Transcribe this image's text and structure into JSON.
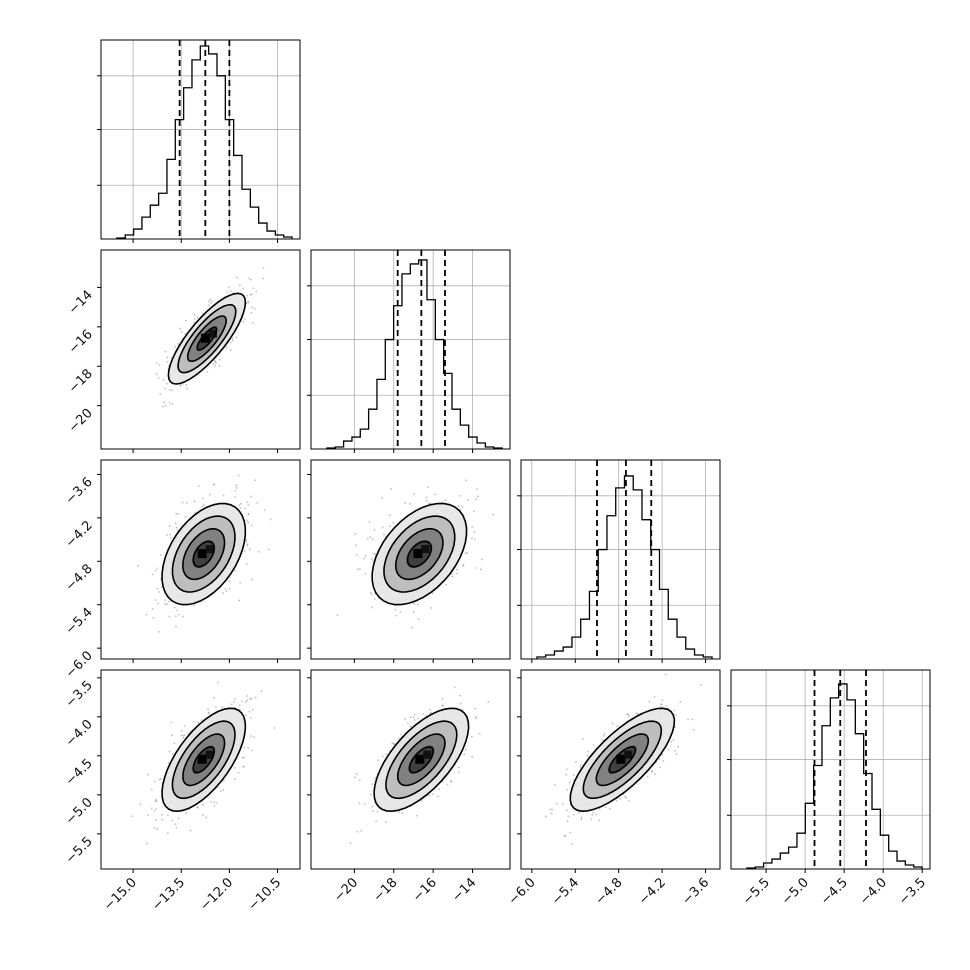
{
  "figure": {
    "type": "corner-plot",
    "n_params": 4
  },
  "style": {
    "grid_color": "#b0b0b0",
    "axis_color": "#000000",
    "hist_color": "#000000",
    "quantile_line_color": "#000000",
    "scatter_color": "#8a8a8a",
    "density_dark": "#000000",
    "background": "#ffffff"
  },
  "chart_data": [
    {
      "panel": "hist-p1",
      "type": "histogram",
      "grid": true,
      "x_ticks": [
        -15.0,
        -13.5,
        -12.0,
        -10.5
      ],
      "xlim": [
        -16.0,
        -9.8
      ],
      "bin_heights": [
        0.005,
        0.02,
        0.05,
        0.11,
        0.17,
        0.23,
        0.4,
        0.6,
        0.76,
        0.9,
        0.97,
        0.93,
        0.82,
        0.6,
        0.42,
        0.25,
        0.16,
        0.08,
        0.04,
        0.02,
        0.01
      ],
      "quantiles": [
        -13.55,
        -12.75,
        -12.0
      ]
    },
    {
      "panel": "hist-p2",
      "type": "histogram",
      "grid": true,
      "x_ticks": [
        -20,
        -18,
        -16,
        -14
      ],
      "xlim": [
        -22.2,
        -12.1
      ],
      "bin_heights": [
        0.005,
        0.01,
        0.04,
        0.06,
        0.1,
        0.2,
        0.35,
        0.55,
        0.72,
        0.88,
        0.93,
        0.95,
        0.75,
        0.55,
        0.38,
        0.2,
        0.12,
        0.06,
        0.03,
        0.01,
        0.005
      ],
      "quantiles": [
        -17.8,
        -16.6,
        -15.4
      ]
    },
    {
      "panel": "hist-p3",
      "type": "histogram",
      "grid": true,
      "x_ticks": [
        -6.0,
        -5.4,
        -4.8,
        -4.2,
        -3.6
      ],
      "xlim": [
        -6.15,
        -3.4
      ],
      "bin_heights": [
        0.01,
        0.02,
        0.04,
        0.06,
        0.11,
        0.2,
        0.34,
        0.55,
        0.72,
        0.86,
        0.92,
        0.85,
        0.7,
        0.55,
        0.35,
        0.2,
        0.11,
        0.05,
        0.02,
        0.01
      ],
      "quantiles": [
        -5.1,
        -4.7,
        -4.35
      ]
    },
    {
      "panel": "hist-p4",
      "type": "histogram",
      "grid": true,
      "x_ticks": [
        -5.5,
        -5.0,
        -4.5,
        -4.0,
        -3.5
      ],
      "xlim": [
        -5.95,
        -3.4
      ],
      "bin_heights": [
        0.005,
        0.01,
        0.03,
        0.05,
        0.08,
        0.11,
        0.18,
        0.33,
        0.52,
        0.72,
        0.86,
        0.93,
        0.85,
        0.68,
        0.48,
        0.3,
        0.17,
        0.09,
        0.04,
        0.02,
        0.01
      ],
      "quantiles": [
        -4.88,
        -4.55,
        -4.22
      ]
    },
    {
      "panel": "2d-p1-p2",
      "type": "2d-density",
      "x_ticks": [
        -15.0,
        -13.5,
        -12.0,
        -10.5
      ],
      "y_ticks": [
        -14,
        -16,
        -18,
        -20
      ],
      "xlim": [
        -16.0,
        -9.8
      ],
      "ylim": [
        -22.2,
        -12.1
      ],
      "mean": [
        -12.7,
        -16.6
      ],
      "sd": [
        0.6,
        1.15
      ],
      "corr": 0.8
    },
    {
      "panel": "2d-p1-p3",
      "type": "2d-density",
      "x_ticks": [
        -15.0,
        -13.5,
        -12.0,
        -10.5
      ],
      "y_ticks": [
        -3.6,
        -4.2,
        -4.8,
        -5.4,
        -6.0
      ],
      "xlim": [
        -16.0,
        -9.8
      ],
      "ylim": [
        -6.15,
        -3.4
      ],
      "mean": [
        -12.8,
        -4.7
      ],
      "sd": [
        0.65,
        0.35
      ],
      "corr": 0.45
    },
    {
      "panel": "2d-p2-p3",
      "type": "2d-density",
      "x_ticks": [
        -20,
        -18,
        -16,
        -14
      ],
      "y_ticks": [
        -3.6,
        -4.2,
        -4.8,
        -5.4,
        -6.0
      ],
      "xlim": [
        -22.2,
        -12.1
      ],
      "ylim": [
        -6.15,
        -3.4
      ],
      "mean": [
        -16.7,
        -4.7
      ],
      "sd": [
        1.2,
        0.35
      ],
      "corr": 0.45
    },
    {
      "panel": "2d-p1-p4",
      "type": "2d-density",
      "x_ticks": [
        -15.0,
        -13.5,
        -12.0,
        -10.5
      ],
      "y_ticks": [
        -3.5,
        -4.0,
        -4.5,
        -5.0,
        -5.5
      ],
      "xlim": [
        -16.0,
        -9.8
      ],
      "ylim": [
        -5.95,
        -3.4
      ],
      "mean": [
        -12.8,
        -4.55
      ],
      "sd": [
        0.65,
        0.33
      ],
      "corr": 0.65
    },
    {
      "panel": "2d-p2-p4",
      "type": "2d-density",
      "x_ticks": [
        -20,
        -18,
        -16,
        -14
      ],
      "y_ticks": [
        -3.5,
        -4.0,
        -4.5,
        -5.0,
        -5.5
      ],
      "xlim": [
        -22.2,
        -12.1
      ],
      "ylim": [
        -5.95,
        -3.4
      ],
      "mean": [
        -16.6,
        -4.55
      ],
      "sd": [
        1.2,
        0.33
      ],
      "corr": 0.65
    },
    {
      "panel": "2d-p3-p4",
      "type": "2d-density",
      "x_ticks": [
        -6.0,
        -5.4,
        -4.8,
        -4.2,
        -3.6
      ],
      "y_ticks": [
        -3.5,
        -4.0,
        -4.5,
        -5.0,
        -5.5
      ],
      "xlim": [
        -6.15,
        -3.4
      ],
      "ylim": [
        -5.95,
        -3.4
      ],
      "mean": [
        -4.75,
        -4.55
      ],
      "sd": [
        0.36,
        0.33
      ],
      "corr": 0.75
    }
  ],
  "axis_labels": {
    "row2_y": [
      "−14",
      "−16",
      "−18",
      "−20"
    ],
    "row3_y": [
      "−3.6",
      "−4.2",
      "−4.8",
      "−5.4",
      "−6.0"
    ],
    "row4_y": [
      "−3.5",
      "−4.0",
      "−4.5",
      "−5.0",
      "−5.5"
    ],
    "col1_x": [
      "−15.0",
      "−13.5",
      "−12.0",
      "−10.5"
    ],
    "col2_x": [
      "−20",
      "−18",
      "−16",
      "−14"
    ],
    "col3_x": [
      "−6.0",
      "−5.4",
      "−4.8",
      "−4.2",
      "−3.6"
    ],
    "col4_x": [
      "−5.5",
      "−5.0",
      "−4.5",
      "−4.0",
      "−3.5"
    ]
  }
}
